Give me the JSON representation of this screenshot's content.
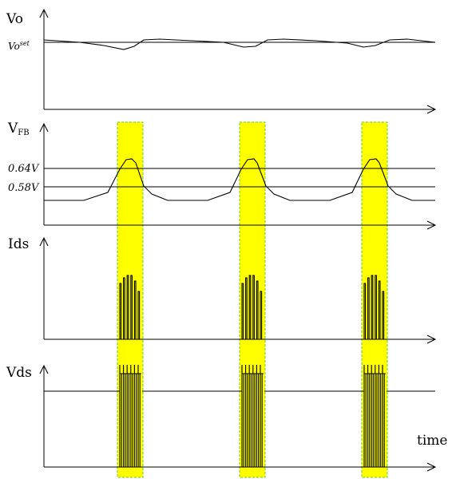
{
  "labels": {
    "vo": "Vo",
    "vo_set_main": "Vo",
    "vo_set_sup": "set",
    "vfb_main": "V",
    "vfb_sub": "FB",
    "ids": "Ids",
    "vds": "Vds",
    "time": "time"
  },
  "levels": {
    "high": "0.64V",
    "low": "0.58V"
  },
  "highlight": {
    "fill": "#ffff00",
    "border": "#66cc33"
  }
}
